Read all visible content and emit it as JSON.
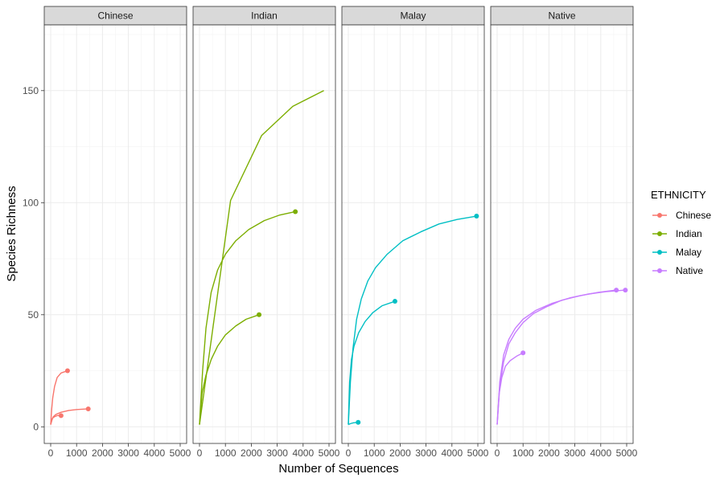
{
  "chart_data": {
    "type": "line",
    "xlabel": "Number of Sequences",
    "ylabel": "Species Richness",
    "xlim": [
      0,
      5000
    ],
    "ylim": [
      0,
      178
    ],
    "x_ticks": [
      0,
      1000,
      2000,
      3000,
      4000,
      5000
    ],
    "y_ticks": [
      0,
      50,
      100,
      150
    ],
    "grid": true,
    "legend": {
      "title": "ETHNICITY",
      "position": "right",
      "entries": [
        "Chinese",
        "Indian",
        "Malay",
        "Native"
      ]
    },
    "colors": {
      "Chinese": "#F8766D",
      "Indian": "#7CAE00",
      "Malay": "#00BFC4",
      "Native": "#C77CFF"
    },
    "facets": [
      {
        "label": "Chinese",
        "series": [
          {
            "endpoint": true,
            "points": [
              [
                0,
                1
              ],
              [
                40,
                8
              ],
              [
                80,
                13
              ],
              [
                150,
                18
              ],
              [
                250,
                22
              ],
              [
                400,
                24
              ],
              [
                650,
                25
              ]
            ]
          },
          {
            "endpoint": true,
            "points": [
              [
                0,
                1
              ],
              [
                30,
                3
              ],
              [
                80,
                4
              ],
              [
                150,
                4.5
              ],
              [
                250,
                5
              ],
              [
                400,
                5
              ]
            ]
          },
          {
            "endpoint": true,
            "points": [
              [
                0,
                1
              ],
              [
                50,
                3
              ],
              [
                100,
                4.5
              ],
              [
                200,
                5.5
              ],
              [
                400,
                6.5
              ],
              [
                700,
                7.3
              ],
              [
                1000,
                7.7
              ],
              [
                1450,
                8
              ]
            ]
          }
        ]
      },
      {
        "label": "Indian",
        "series": [
          {
            "endpoint": false,
            "points": [
              [
                0,
                1
              ],
              [
                1200,
                101
              ],
              [
                2400,
                130
              ],
              [
                3600,
                143
              ],
              [
                4800,
                150
              ]
            ]
          },
          {
            "endpoint": true,
            "points": [
              [
                0,
                1
              ],
              [
                120,
                25
              ],
              [
                250,
                44
              ],
              [
                450,
                60
              ],
              [
                700,
                70
              ],
              [
                1000,
                77
              ],
              [
                1400,
                83
              ],
              [
                1900,
                88
              ],
              [
                2500,
                92
              ],
              [
                3100,
                94.5
              ],
              [
                3700,
                96
              ]
            ]
          },
          {
            "endpoint": true,
            "points": [
              [
                0,
                1
              ],
              [
                100,
                15
              ],
              [
                250,
                23
              ],
              [
                450,
                30
              ],
              [
                700,
                36
              ],
              [
                1000,
                41
              ],
              [
                1400,
                45
              ],
              [
                1800,
                48
              ],
              [
                2300,
                50
              ]
            ]
          }
        ]
      },
      {
        "label": "Malay",
        "series": [
          {
            "endpoint": true,
            "points": [
              [
                0,
                1
              ],
              [
                80,
                20
              ],
              [
                180,
                35
              ],
              [
                320,
                48
              ],
              [
                500,
                57
              ],
              [
                750,
                65
              ],
              [
                1050,
                71
              ],
              [
                1500,
                77
              ],
              [
                2100,
                83
              ],
              [
                2800,
                87
              ],
              [
                3500,
                90.5
              ],
              [
                4200,
                92.5
              ],
              [
                4950,
                94
              ]
            ]
          },
          {
            "endpoint": true,
            "points": [
              [
                0,
                1
              ],
              [
                50,
                20
              ],
              [
                120,
                30
              ],
              [
                220,
                36
              ],
              [
                400,
                42
              ],
              [
                650,
                47
              ],
              [
                950,
                51
              ],
              [
                1300,
                54
              ],
              [
                1800,
                56
              ]
            ]
          },
          {
            "endpoint": true,
            "points": [
              [
                0,
                1
              ],
              [
                100,
                1.5
              ],
              [
                200,
                1.8
              ],
              [
                380,
                2
              ]
            ]
          }
        ]
      },
      {
        "label": "Native",
        "series": [
          {
            "endpoint": true,
            "points": [
              [
                0,
                1
              ],
              [
                100,
                18
              ],
              [
                250,
                29
              ],
              [
                450,
                37
              ],
              [
                700,
                42
              ],
              [
                1000,
                46.5
              ],
              [
                1400,
                50.5
              ],
              [
                1900,
                53.5
              ],
              [
                2500,
                56.5
              ],
              [
                3200,
                58.5
              ],
              [
                3900,
                60
              ],
              [
                4600,
                61
              ]
            ]
          },
          {
            "endpoint": true,
            "points": [
              [
                0,
                1
              ],
              [
                100,
                20
              ],
              [
                250,
                32
              ],
              [
                450,
                39
              ],
              [
                700,
                44
              ],
              [
                1000,
                48
              ],
              [
                1500,
                52
              ],
              [
                2100,
                55
              ],
              [
                2800,
                57.5
              ],
              [
                3500,
                59.2
              ],
              [
                4200,
                60.3
              ],
              [
                4950,
                61
              ]
            ]
          },
          {
            "endpoint": true,
            "points": [
              [
                0,
                1
              ],
              [
                80,
                15
              ],
              [
                180,
                22
              ],
              [
                320,
                27
              ],
              [
                500,
                29.5
              ],
              [
                750,
                31.5
              ],
              [
                1000,
                33
              ]
            ]
          }
        ]
      }
    ]
  }
}
